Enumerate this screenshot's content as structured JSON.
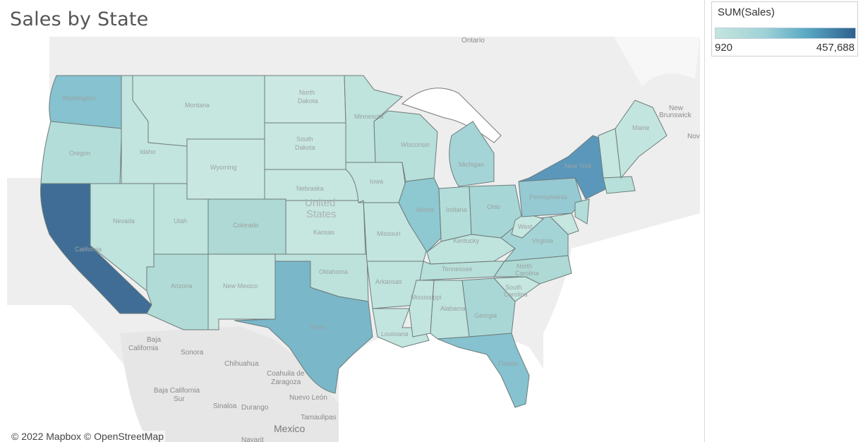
{
  "title": "Sales by State",
  "legend": {
    "title": "SUM(Sales)",
    "min_label": "920",
    "max_label": "457,688",
    "min_value": 920,
    "max_value": 457688,
    "color_low": "#c5e5df",
    "color_high": "#2e5f8e"
  },
  "attribution": "© 2022 Mapbox © OpenStreetMap",
  "map_places": {
    "ontario": "Ontario",
    "new_brunswick_1": "New",
    "new_brunswick_2": "Brunswick",
    "nova": "Nova",
    "united_1": "United",
    "united_2": "States",
    "baja_california_1": "Baja",
    "baja_california_2": "California",
    "sonora": "Sonora",
    "chihuahua": "Chihuahua",
    "coahuila_1": "Coahuila de",
    "coahuila_2": "Zaragoza",
    "baja_sur_1": "Baja California",
    "baja_sur_2": "Sur",
    "nuevo_leon": "Nuevo León",
    "sinaloa": "Sinaloa",
    "durango": "Durango",
    "tamaulipas": "Tamaulipas",
    "mexico": "Mexico",
    "nayarit": "Nayarit"
  },
  "states": {
    "washington": "Washington",
    "oregon": "Oregon",
    "california": "California",
    "nevada": "Nevada",
    "idaho": "Idaho",
    "montana": "Montana",
    "wyoming": "Wyoming",
    "utah": "Utah",
    "arizona": "Arizona",
    "colorado": "Colorado",
    "new_mexico": "New Mexico",
    "north_dakota_1": "North",
    "north_dakota_2": "Dakota",
    "south_dakota_1": "South",
    "south_dakota_2": "Dakota",
    "nebraska": "Nebraska",
    "kansas": "Kansas",
    "oklahoma": "Oklahoma",
    "texas": "Texas",
    "minnesota": "Minnesota",
    "iowa": "Iowa",
    "missouri": "Missouri",
    "arkansas": "Arkansas",
    "louisiana": "Louisiana",
    "wisconsin": "Wisconsin",
    "illinois": "Illinois",
    "michigan": "Michigan",
    "indiana": "Indiana",
    "ohio": "Ohio",
    "kentucky": "Kentucky",
    "tennessee": "Tennessee",
    "mississippi": "Mississippi",
    "alabama": "Alabama",
    "georgia": "Georgia",
    "florida": "Florida",
    "south_carolina_1": "South",
    "south_carolina_2": "Carolina",
    "north_carolina_1": "North",
    "north_carolina_2": "Carolina",
    "virginia": "Virginia",
    "west_virginia": "West",
    "pennsylvania": "Pennsylvania",
    "new_york": "New York",
    "maine": "Maine"
  }
}
